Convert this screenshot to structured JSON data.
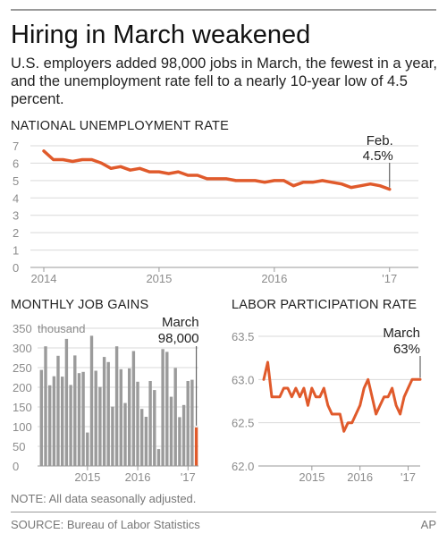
{
  "header": {
    "title": "Hiring in March weakened",
    "subtitle": "U.S. employers added 98,000 jobs in March, the fewest in a year, and the unemployment rate fell to a nearly 10-year low of 4.5 percent."
  },
  "footer": {
    "note": "NOTE: All data seasonally adjusted.",
    "source": "SOURCE: Bureau of Labor Statistics",
    "credit": "AP"
  },
  "colors": {
    "accent": "#e05a2b",
    "bar": "#9b9b9b",
    "axis_text": "#8c8c8c",
    "grid": "#d9d9d9"
  },
  "chart_data": [
    {
      "id": "unemployment",
      "type": "line",
      "title": "NATIONAL UNEMPLOYMENT RATE",
      "ylim": [
        0,
        7
      ],
      "yticks": [
        "0",
        "1",
        "2",
        "3",
        "4",
        "5",
        "6",
        "7"
      ],
      "xlim": [
        0,
        39
      ],
      "xticks": [
        {
          "label": "2014",
          "x": 0
        },
        {
          "label": "2015",
          "x": 12
        },
        {
          "label": "2016",
          "x": 24
        },
        {
          "label": "'17",
          "x": 36
        }
      ],
      "grid": true,
      "series": [
        {
          "values": [
            6.7,
            6.2,
            6.2,
            6.1,
            6.2,
            6.2,
            6.0,
            5.7,
            5.8,
            5.6,
            5.7,
            5.5,
            5.5,
            5.4,
            5.5,
            5.3,
            5.3,
            5.1,
            5.1,
            5.1,
            5.0,
            5.0,
            5.0,
            4.9,
            5.0,
            5.0,
            4.7,
            4.9,
            4.9,
            5.0,
            4.9,
            4.8,
            4.6,
            4.7,
            4.8,
            4.7,
            4.5
          ]
        }
      ],
      "annotation": {
        "line1": "Feb.",
        "line2": "4.5%"
      }
    },
    {
      "id": "jobs",
      "type": "bar",
      "title": "MONTHLY JOB GAINS",
      "unit_label": "thousand",
      "ylim": [
        0,
        350
      ],
      "yticks": [
        "0",
        "50",
        "100",
        "150",
        "200",
        "250",
        "300",
        "350"
      ],
      "xticks": [
        {
          "label": "2015",
          "index": 11
        },
        {
          "label": "2016",
          "index": 23
        },
        {
          "label": "'17",
          "index": 35
        }
      ],
      "grid": true,
      "values": [
        244,
        304,
        205,
        228,
        280,
        227,
        323,
        206,
        281,
        236,
        239,
        85,
        331,
        242,
        201,
        277,
        264,
        151,
        304,
        246,
        160,
        248,
        292,
        214,
        145,
        125,
        216,
        193,
        43,
        297,
        290,
        176,
        249,
        124,
        155,
        216,
        219,
        98
      ],
      "highlight_index": 37,
      "annotation": {
        "line1": "March",
        "line2": "98,000"
      }
    },
    {
      "id": "participation",
      "type": "line",
      "title": "LABOR PARTICIPATION RATE",
      "ylim": [
        62.0,
        63.5
      ],
      "yticks": [
        "62.0",
        "62.5",
        "63.0",
        "63.5"
      ],
      "xlim": [
        0,
        39
      ],
      "xticks": [
        {
          "label": "2015",
          "x": 12
        },
        {
          "label": "2016",
          "x": 24
        },
        {
          "label": "'17",
          "x": 36
        }
      ],
      "grid": true,
      "series": [
        {
          "values": [
            63.0,
            63.2,
            62.8,
            62.8,
            62.8,
            62.9,
            62.9,
            62.8,
            62.9,
            62.8,
            62.9,
            62.7,
            62.9,
            62.8,
            62.8,
            62.9,
            62.7,
            62.6,
            62.6,
            62.6,
            62.4,
            62.5,
            62.5,
            62.6,
            62.7,
            62.9,
            63.0,
            62.8,
            62.6,
            62.7,
            62.8,
            62.8,
            62.9,
            62.7,
            62.6,
            62.8,
            62.9,
            63.0,
            63.0,
            63.0
          ]
        }
      ],
      "annotation": {
        "line1": "March",
        "line2": "63%"
      }
    }
  ]
}
